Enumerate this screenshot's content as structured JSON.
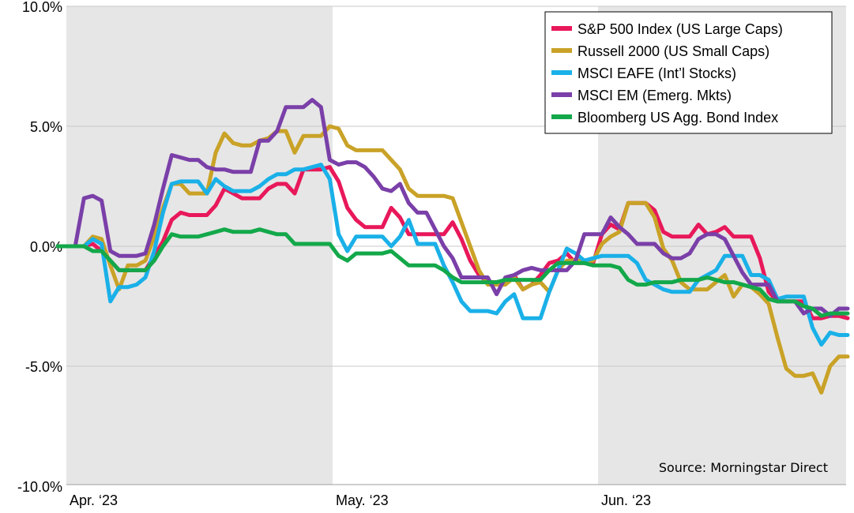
{
  "chart_data": {
    "type": "line",
    "x_labels": [
      "Apr. ‘23",
      "May. ‘23",
      "Jun. ‘23"
    ],
    "y_ticks": [
      "10.0%",
      "5.0%",
      "0.0%",
      "-5.0%",
      "-10.0%"
    ],
    "y_tick_values": [
      10,
      5,
      0,
      -5,
      -10
    ],
    "ylim": [
      -10,
      10
    ],
    "grid": "horizontal",
    "legend_position": "top-right",
    "source": "Source: Morningstar Direct",
    "shaded_months": [
      "Apr. ‘23",
      "Jun. ‘23"
    ],
    "shade_color": "#e6e6e6",
    "x_unit": "trading day index",
    "series": [
      {
        "name": "S&P 500 Index (US Large Caps)",
        "color": "#e8185a",
        "values": [
          0.0,
          0.0,
          0.0,
          0.0,
          0.1,
          -0.2,
          -0.6,
          -1.0,
          -1.0,
          -1.0,
          -1.0,
          -0.4,
          0.2,
          1.1,
          1.4,
          1.3,
          1.3,
          1.3,
          1.7,
          2.4,
          2.2,
          2.0,
          2.0,
          2.0,
          2.4,
          2.6,
          2.6,
          2.2,
          3.2,
          3.2,
          3.2,
          3.3,
          2.7,
          1.6,
          1.1,
          0.8,
          0.8,
          0.8,
          1.6,
          1.2,
          0.5,
          0.5,
          0.5,
          0.5,
          0.5,
          1.0,
          0.3,
          -0.6,
          -1.2,
          -1.5,
          -1.5,
          -1.5,
          -1.2,
          -1.8,
          -1.6,
          -1.2,
          -0.7,
          -0.6,
          -0.3,
          -0.7,
          -0.7,
          -0.7,
          0.5,
          0.9,
          0.7,
          1.8,
          1.8,
          1.8,
          1.5,
          0.6,
          0.4,
          0.4,
          0.4,
          0.9,
          0.5,
          0.6,
          0.8,
          0.4,
          0.4,
          0.4,
          -0.5,
          -1.9,
          -2.3,
          -2.3,
          -2.3,
          -2.3,
          -3.0,
          -3.0,
          -2.9,
          -2.9,
          -3.0
        ]
      },
      {
        "name": "Russell 2000 (US Small Caps)",
        "color": "#c9a227",
        "values": [
          0.0,
          0.0,
          0.0,
          0.0,
          0.4,
          0.3,
          -0.8,
          -1.8,
          -0.8,
          -0.8,
          -0.6,
          0.4,
          1.6,
          2.6,
          2.6,
          2.2,
          2.2,
          2.2,
          3.9,
          4.7,
          4.3,
          4.2,
          4.2,
          4.4,
          4.5,
          4.8,
          4.8,
          3.9,
          4.6,
          4.6,
          4.6,
          5.0,
          4.9,
          4.2,
          4.0,
          4.0,
          4.0,
          4.0,
          3.6,
          3.2,
          2.4,
          2.1,
          2.1,
          2.1,
          2.1,
          2.0,
          1.0,
          0.0,
          -1.0,
          -1.6,
          -1.6,
          -1.6,
          -1.3,
          -1.8,
          -1.6,
          -1.5,
          -1.9,
          -1.0,
          -0.6,
          -0.6,
          -0.6,
          -0.6,
          0.1,
          0.4,
          0.6,
          1.8,
          1.8,
          1.8,
          1.2,
          -0.1,
          -0.6,
          -1.5,
          -1.8,
          -1.8,
          -1.8,
          -1.5,
          -1.2,
          -2.1,
          -1.6,
          -1.7,
          -2.0,
          -2.4,
          -3.8,
          -5.1,
          -5.4,
          -5.4,
          -5.3,
          -6.1,
          -5.0,
          -4.6,
          -4.6
        ]
      },
      {
        "name": "MSCI EAFE (Int’l Stocks)",
        "color": "#1ab0e8",
        "values": [
          0.0,
          0.0,
          0.0,
          0.0,
          0.3,
          0.1,
          -2.3,
          -1.7,
          -1.7,
          -1.6,
          -1.3,
          -0.2,
          1.4,
          2.6,
          2.7,
          2.7,
          2.7,
          2.2,
          2.8,
          2.5,
          2.3,
          2.3,
          2.3,
          2.5,
          2.8,
          3.0,
          3.0,
          3.2,
          3.2,
          3.3,
          3.4,
          2.8,
          0.5,
          -0.2,
          0.4,
          0.4,
          0.4,
          0.4,
          0.0,
          0.4,
          1.1,
          0.1,
          0.1,
          0.1,
          -0.8,
          -1.5,
          -2.3,
          -2.7,
          -2.7,
          -2.7,
          -2.8,
          -2.3,
          -2.0,
          -3.0,
          -3.0,
          -3.0,
          -1.9,
          -1.0,
          -0.1,
          -0.3,
          -0.6,
          -0.5,
          -0.4,
          -0.4,
          -0.4,
          -0.4,
          -0.7,
          -1.4,
          -1.6,
          -1.8,
          -1.9,
          -1.9,
          -1.9,
          -1.4,
          -1.2,
          -1.0,
          -0.4,
          -0.4,
          -0.4,
          -1.2,
          -1.2,
          -1.4,
          -2.2,
          -2.1,
          -2.1,
          -2.1,
          -3.4,
          -4.1,
          -3.6,
          -3.7,
          -3.7
        ]
      },
      {
        "name": "MSCI EM (Emerg. Mkts)",
        "color": "#7a3fa8",
        "values": [
          0.0,
          0.0,
          0.0,
          2.0,
          2.1,
          1.9,
          -0.2,
          -0.4,
          -0.4,
          -0.4,
          -0.3,
          0.9,
          2.4,
          3.8,
          3.7,
          3.6,
          3.6,
          3.3,
          3.2,
          3.2,
          3.1,
          3.1,
          3.1,
          4.4,
          4.4,
          4.8,
          5.8,
          5.8,
          5.8,
          6.1,
          5.8,
          3.6,
          3.4,
          3.5,
          3.5,
          3.3,
          2.9,
          2.4,
          2.3,
          2.6,
          1.8,
          1.4,
          1.4,
          0.7,
          0.0,
          -0.5,
          -1.3,
          -1.3,
          -1.3,
          -1.3,
          -2.0,
          -1.3,
          -1.2,
          -1.0,
          -0.9,
          -1.0,
          -1.0,
          -1.0,
          -1.0,
          -0.6,
          0.5,
          0.5,
          0.5,
          1.2,
          0.8,
          0.5,
          0.1,
          0.1,
          0.1,
          -0.3,
          -0.5,
          -0.5,
          -0.3,
          0.3,
          0.5,
          0.5,
          0.3,
          -0.4,
          -1.1,
          -1.6,
          -1.6,
          -1.6,
          -2.3,
          -2.3,
          -2.3,
          -2.8,
          -2.6,
          -2.6,
          -2.9,
          -2.6,
          -2.6
        ]
      },
      {
        "name": "Bloomberg US Agg. Bond Index",
        "color": "#13a84a",
        "values": [
          0.0,
          0.0,
          0.0,
          0.0,
          -0.2,
          -0.2,
          -0.6,
          -1.0,
          -1.0,
          -1.0,
          -1.0,
          -0.6,
          0.0,
          0.5,
          0.4,
          0.4,
          0.4,
          0.5,
          0.6,
          0.7,
          0.6,
          0.6,
          0.6,
          0.7,
          0.6,
          0.5,
          0.5,
          0.1,
          0.1,
          0.1,
          0.1,
          0.1,
          -0.4,
          -0.6,
          -0.3,
          -0.3,
          -0.3,
          -0.3,
          -0.2,
          -0.5,
          -0.8,
          -0.8,
          -0.8,
          -0.8,
          -1.0,
          -1.3,
          -1.5,
          -1.5,
          -1.5,
          -1.5,
          -1.5,
          -1.4,
          -1.4,
          -1.4,
          -1.4,
          -1.4,
          -1.0,
          -0.7,
          -0.7,
          -0.7,
          -0.7,
          -0.8,
          -0.8,
          -0.8,
          -0.9,
          -1.4,
          -1.6,
          -1.6,
          -1.5,
          -1.5,
          -1.5,
          -1.4,
          -1.4,
          -1.4,
          -1.3,
          -1.4,
          -1.5,
          -1.5,
          -1.6,
          -1.7,
          -1.8,
          -2.2,
          -2.3,
          -2.3,
          -2.3,
          -2.5,
          -2.6,
          -2.9,
          -2.8,
          -2.8,
          -2.8
        ]
      }
    ]
  }
}
